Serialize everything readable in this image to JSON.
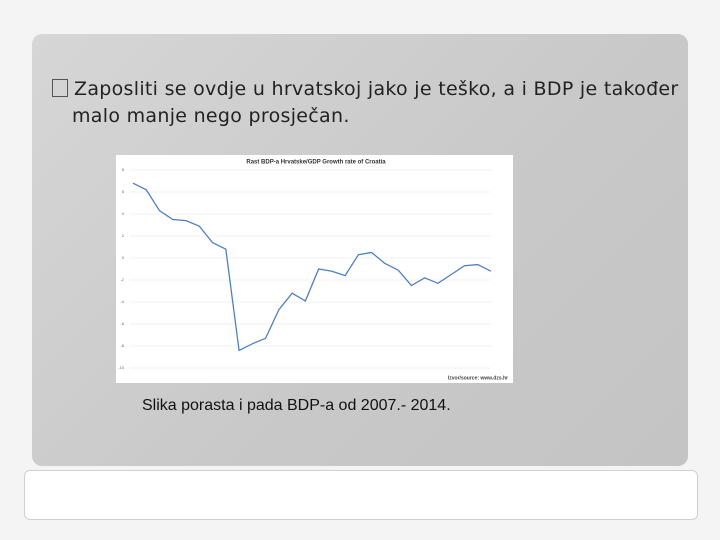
{
  "slide": {
    "bullet": "Zaposliti se ovdje u hrvatskoj jako je teško, a i BDP je također malo manje nego prosječan.",
    "caption": "Slika porasta i pada BDP-a od 2007.- 2014."
  },
  "chart_data": {
    "type": "line",
    "title": "Rast BDP-a Hrvatske/GDP Growth rate of Croatia",
    "source": "Izvor/source: www.dzs.hr",
    "categories": [
      null,
      null,
      null,
      null,
      null,
      null,
      null,
      null,
      null,
      null,
      null,
      null,
      null,
      null,
      null,
      null,
      null,
      null,
      null,
      null,
      null,
      null,
      null,
      null,
      null,
      null,
      null,
      null
    ],
    "series": [
      {
        "name": null,
        "color": "#4f7fbf",
        "values": [
          6.8,
          6.2,
          4.3,
          3.5,
          3.4,
          2.9,
          1.4,
          0.8,
          -8.4,
          -7.8,
          -7.3,
          -4.7,
          -3.2,
          -3.9,
          -1.0,
          -1.2,
          -1.6,
          0.3,
          0.5,
          -0.5,
          -1.1,
          -2.5,
          -1.8,
          -2.3,
          -1.5,
          -0.7,
          -0.6,
          -1.2
        ]
      }
    ],
    "ylim": [
      -10,
      8
    ],
    "yticks": [
      8,
      6,
      4,
      2,
      0,
      -2,
      -4,
      -6,
      -8,
      -10
    ],
    "grid": true
  }
}
